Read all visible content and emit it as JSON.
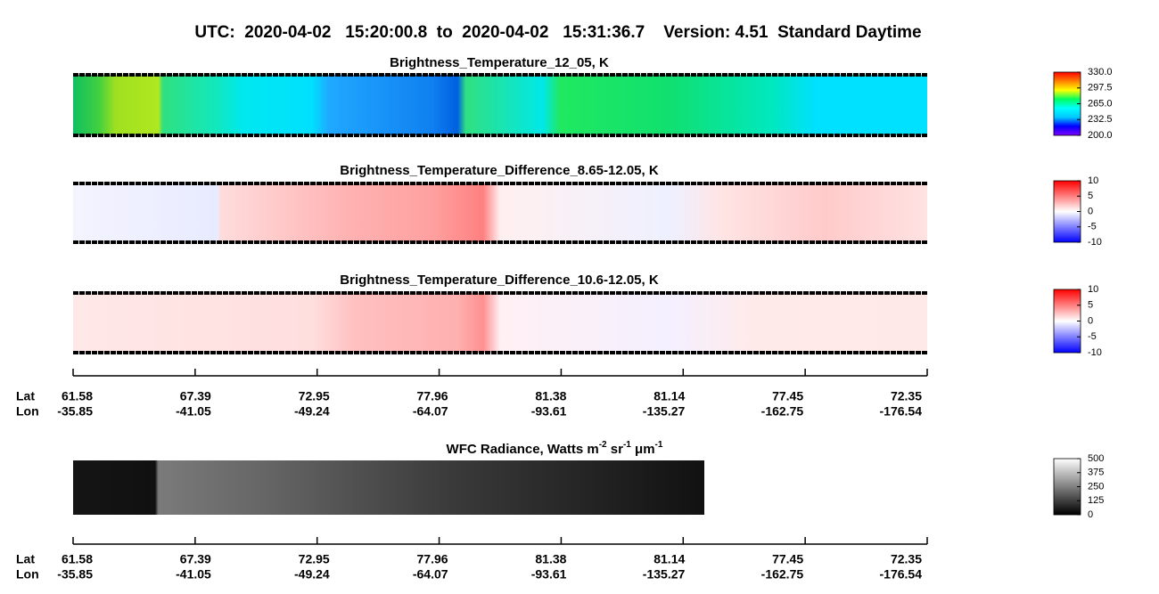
{
  "title": "UTC:  2020-04-02   15:20:00.8  to  2020-04-02   15:31:36.7    Version: 4.51  Standard Daytime",
  "chart_data": [
    {
      "type": "image",
      "title": "Brightness_Temperature_12_05, K",
      "colormap": [
        "#8000ff",
        "#0000ff",
        "#00c8ff",
        "#00ffff",
        "#00ff60",
        "#ffff00",
        "#ff8000",
        "#ff0000"
      ],
      "clim": [
        200,
        330
      ],
      "cticks": [
        {
          "value": 200,
          "label": "200.0"
        },
        {
          "value": 232.5,
          "label": "232.5"
        },
        {
          "value": 265,
          "label": "265.0"
        },
        {
          "value": 297.5,
          "label": "297.5"
        },
        {
          "value": 330,
          "label": "330.0"
        }
      ]
    },
    {
      "type": "image",
      "title": "Brightness_Temperature_Difference_8.65-12.05, K",
      "colormap": [
        "#0000ff",
        "#ffffff",
        "#ff0000"
      ],
      "clim": [
        -10,
        10
      ],
      "cticks": [
        -10,
        -5,
        0,
        5,
        10
      ]
    },
    {
      "type": "image",
      "title": "Brightness_Temperature_Difference_10.6-12.05, K",
      "colormap": [
        "#0000ff",
        "#ffffff",
        "#ff0000"
      ],
      "clim": [
        -10,
        10
      ],
      "cticks": [
        -10,
        -5,
        0,
        5,
        10
      ]
    },
    {
      "type": "track-axis",
      "row_labels": [
        "Lat",
        "Lon"
      ],
      "lat": [
        61.58,
        67.39,
        72.95,
        77.96,
        81.38,
        81.14,
        77.45,
        72.35
      ],
      "lon": [
        -35.85,
        -41.05,
        -49.24,
        -64.07,
        -93.61,
        -135.27,
        -162.75,
        -176.54
      ]
    },
    {
      "type": "image",
      "title_parts": [
        "WFC Radiance, Watts m",
        "-2",
        " sr",
        "-1",
        " μm",
        "-1"
      ],
      "colormap": [
        "#000000",
        "#ffffff"
      ],
      "clim": [
        0,
        500
      ],
      "cticks": [
        0,
        125,
        250,
        375,
        500
      ]
    },
    {
      "type": "track-axis",
      "row_labels": [
        "Lat",
        "Lon"
      ],
      "lat": [
        61.58,
        67.39,
        72.95,
        77.96,
        81.38,
        81.14,
        77.45,
        72.35
      ],
      "lon": [
        -35.85,
        -41.05,
        -49.24,
        -64.07,
        -93.61,
        -135.27,
        -162.75,
        -176.54
      ]
    }
  ]
}
